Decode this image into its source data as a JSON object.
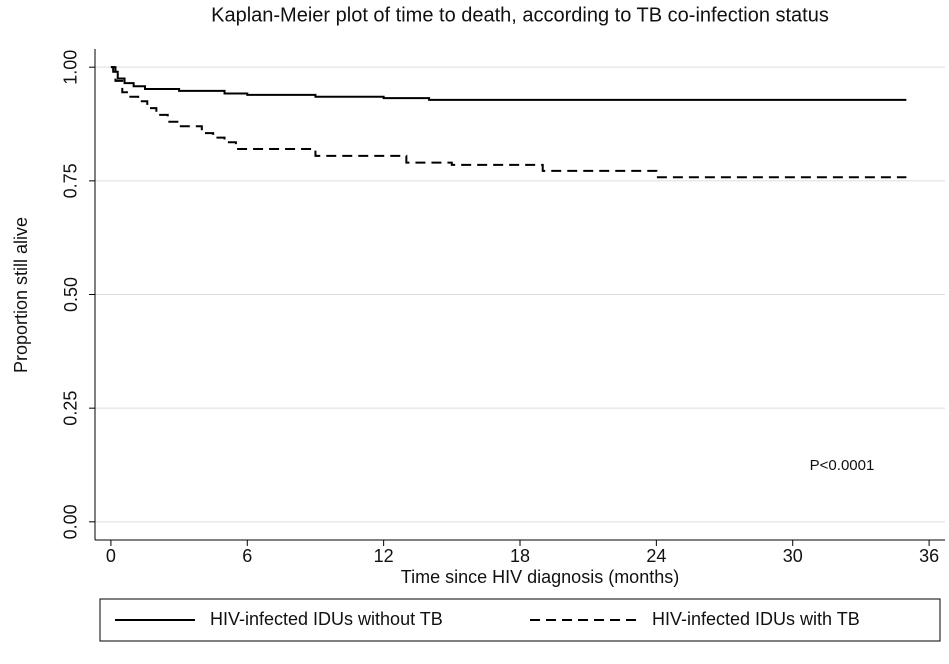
{
  "chart_data": {
    "type": "line",
    "step": true,
    "title": "Kaplan-Meier plot of time to death, according to TB co-infection status",
    "x_label": "Time since HIV diagnosis (months)",
    "y_label": "Proportion still alive",
    "annotation": "P<0.0001",
    "xlim": [
      -0.7,
      36.7
    ],
    "xticks": [
      0,
      6,
      12,
      18,
      24,
      30,
      36
    ],
    "ylim": [
      -0.04,
      1.04
    ],
    "yticks": [
      {
        "value": 0,
        "label": "0.00"
      },
      {
        "value": 0.25,
        "label": "0.25"
      },
      {
        "value": 0.5,
        "label": "0.50"
      },
      {
        "value": 0.75,
        "label": "0.75"
      },
      {
        "value": 1,
        "label": "1.00"
      }
    ],
    "grid": true,
    "legend": "bottom",
    "series": [
      {
        "name": "HIV-infected IDUs without TB",
        "color": "#000000",
        "dash": "solid",
        "x": [
          0,
          0.1,
          0.3,
          0.6,
          1,
          1.5,
          3,
          5,
          6,
          9,
          12,
          14,
          35
        ],
        "values": [
          1,
          0.99,
          0.975,
          0.965,
          0.958,
          0.952,
          0.948,
          0.942,
          0.939,
          0.935,
          0.932,
          0.928,
          0.928
        ]
      },
      {
        "name": "HIV-infected IDUs with TB",
        "color": "#000000",
        "dash": "dashed",
        "x": [
          0,
          0.2,
          0.5,
          0.8,
          1.2,
          1.6,
          2,
          2.5,
          3,
          4,
          4.5,
          5,
          5.5,
          6,
          9,
          13,
          15,
          19,
          20,
          24,
          35
        ],
        "values": [
          1,
          0.97,
          0.945,
          0.935,
          0.925,
          0.91,
          0.895,
          0.88,
          0.87,
          0.855,
          0.845,
          0.835,
          0.82,
          0.82,
          0.805,
          0.79,
          0.785,
          0.772,
          0.772,
          0.758,
          0.758
        ]
      }
    ]
  }
}
